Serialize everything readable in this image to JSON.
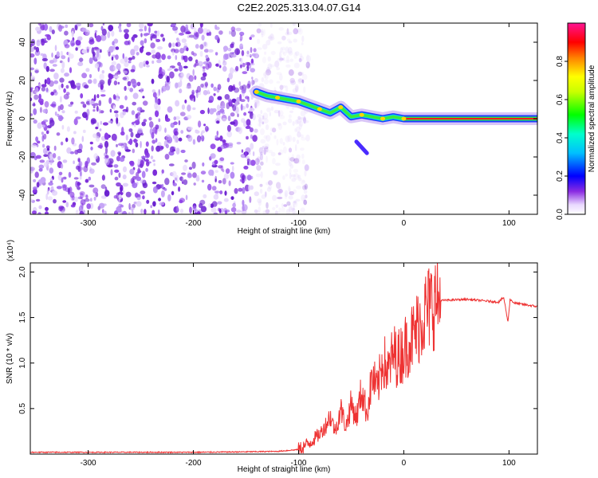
{
  "title": "C2E2.2025.313.04.07.G14",
  "chart_data": [
    {
      "type": "heatmap",
      "xlabel": "Height of straight line (km)",
      "ylabel": "Frequency (Hz)",
      "xlim": [
        -355,
        127
      ],
      "ylim": [
        -50,
        50
      ],
      "xticks": [
        -300,
        -200,
        -100,
        0,
        100
      ],
      "xtick_labels": [
        "-300",
        "-200",
        "-100",
        "0",
        "100"
      ],
      "yticks": [
        -40,
        -20,
        0,
        20,
        40
      ],
      "ytick_labels": [
        "-40",
        "-20",
        "0",
        "20",
        "40"
      ],
      "colorbar": {
        "label": "Normalized spectral amplitude",
        "range": [
          0,
          1
        ],
        "ticks": [
          0.0,
          0.2,
          0.4,
          0.6,
          0.8
        ],
        "tick_labels": [
          "0.0",
          "0.2",
          "0.4",
          "0.6",
          "0.8"
        ]
      },
      "noise_region_x": [
        -355,
        -110
      ],
      "signal_track": [
        {
          "x": -140,
          "f": 14
        },
        {
          "x": -130,
          "f": 12
        },
        {
          "x": -120,
          "f": 11
        },
        {
          "x": -110,
          "f": 10
        },
        {
          "x": -100,
          "f": 9
        },
        {
          "x": -90,
          "f": 7
        },
        {
          "x": -80,
          "f": 5
        },
        {
          "x": -70,
          "f": 3
        },
        {
          "x": -60,
          "f": 6
        },
        {
          "x": -50,
          "f": 1
        },
        {
          "x": -40,
          "f": 2
        },
        {
          "x": -30,
          "f": 1
        },
        {
          "x": -20,
          "f": 0
        },
        {
          "x": -10,
          "f": 1
        },
        {
          "x": 0,
          "f": 0
        },
        {
          "x": 127,
          "f": 0
        }
      ],
      "branch_track": [
        {
          "x": -45,
          "f": -12
        },
        {
          "x": -35,
          "f": -18
        }
      ]
    },
    {
      "type": "line",
      "xlabel": "Height of straight line (km)",
      "ylabel": "SNR (10 * v/v)",
      "multiplier": "(x10⁴)",
      "xlim": [
        -355,
        127
      ],
      "ylim": [
        0,
        2.1
      ],
      "xticks": [
        -300,
        -200,
        -100,
        0,
        100
      ],
      "xtick_labels": [
        "-300",
        "-200",
        "-100",
        "0",
        "100"
      ],
      "yticks": [
        0.5,
        1.0,
        1.5,
        2.0
      ],
      "ytick_labels": [
        "0.5",
        "1.0",
        "1.5",
        "2.0"
      ],
      "series": [
        {
          "name": "SNR",
          "color": "#ee3333",
          "x": [
            -355,
            -300,
            -250,
            -200,
            -150,
            -120,
            -100,
            -90,
            -80,
            -75,
            -70,
            -65,
            -60,
            -55,
            -50,
            -45,
            -40,
            -35,
            -30,
            -25,
            -20,
            -15,
            -10,
            -5,
            0,
            5,
            10,
            15,
            20,
            25,
            30,
            40,
            60,
            80,
            90,
            95,
            99,
            101,
            105,
            110,
            127
          ],
          "y": [
            0.02,
            0.02,
            0.02,
            0.02,
            0.025,
            0.03,
            0.05,
            0.12,
            0.22,
            0.3,
            0.42,
            0.25,
            0.5,
            0.3,
            0.55,
            0.4,
            0.7,
            0.45,
            0.85,
            0.7,
            1.05,
            0.9,
            1.1,
            1.05,
            1.15,
            1.25,
            1.3,
            1.45,
            1.55,
            1.62,
            1.68,
            1.69,
            1.7,
            1.68,
            1.67,
            1.72,
            1.45,
            1.7,
            1.66,
            1.65,
            1.62
          ]
        }
      ]
    }
  ]
}
